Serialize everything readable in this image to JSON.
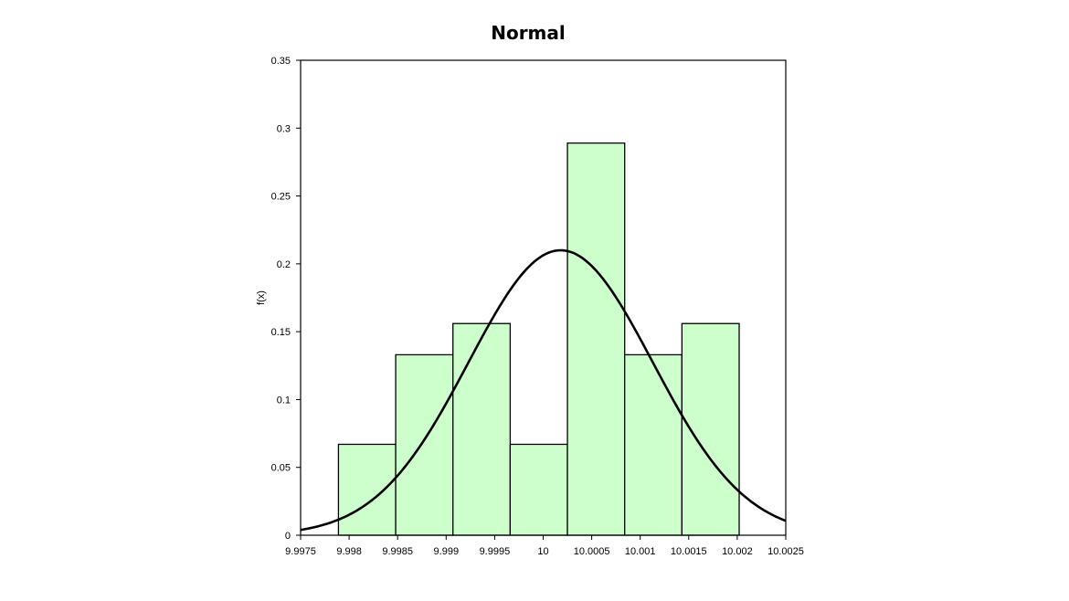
{
  "chart_data": {
    "type": "bar",
    "title": "Normal",
    "xlabel": "",
    "ylabel": "f(x)",
    "xlim": [
      9.9975,
      10.0025
    ],
    "ylim": [
      0,
      0.35
    ],
    "grid": false,
    "legend": "none",
    "x_ticks": [
      "9.9975",
      "9.998",
      "9.9985",
      "9.999",
      "9.9995",
      "10",
      "10.0005",
      "10.001",
      "10.0015",
      "10.002",
      "10.0025"
    ],
    "y_ticks": [
      "0",
      "0.05",
      "0.1",
      "0.15",
      "0.2",
      "0.25",
      "0.3",
      "0.35"
    ],
    "histogram": {
      "bin_edges": [
        9.99789,
        9.99848,
        9.99907,
        9.99966,
        10.00025,
        10.00084,
        10.00143,
        10.00202
      ],
      "values": [
        0.067,
        0.133,
        0.156,
        0.067,
        0.289,
        0.133,
        0.156
      ],
      "fill_color": "#ccffcc"
    },
    "curve": {
      "type": "normal",
      "mean": 10.00018,
      "peak": 0.21,
      "sigma": 0.00095,
      "color": "#000000"
    }
  }
}
